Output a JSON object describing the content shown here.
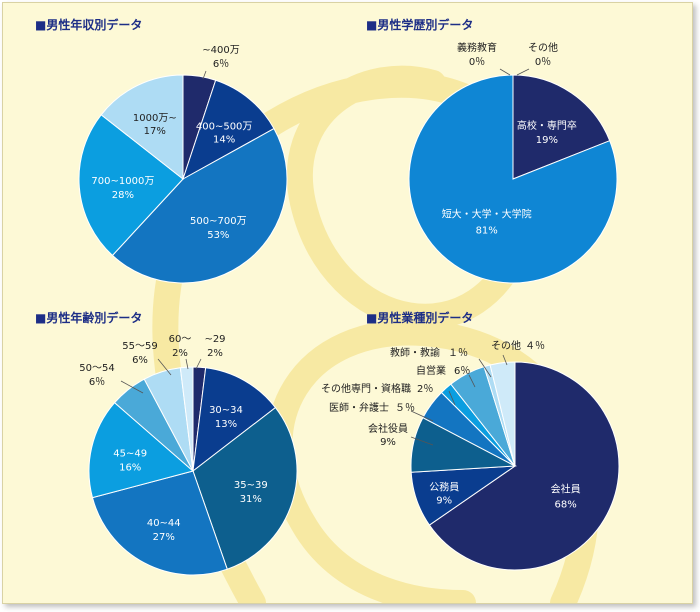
{
  "colors": {
    "background": "#fdf9d6",
    "swirl": "#f7e9a3",
    "title": "#1d2e86",
    "navy": "#1f2a6b",
    "dark_blue": "#0a3d8f",
    "medium_blue": "#1375c1",
    "bright_blue": "#0b9ee0",
    "light_blue": "#aedcf4",
    "very_light_blue": "#cfeaf9",
    "steel_blue": "#4aa9d8",
    "teal_blue": "#0d5f8e"
  },
  "chart_data": [
    {
      "type": "pie",
      "title": "■男性年収別データ",
      "slices": [
        {
          "label": "~400万",
          "value": 6,
          "value_text": "6％",
          "color": "#1f2a6b",
          "label_position": "outside",
          "label_color": "#222222"
        },
        {
          "label": "400~500万",
          "value": 14,
          "value_text": "14%",
          "color": "#0a3d8f",
          "label_position": "inside",
          "label_color": "#ffffff"
        },
        {
          "label": "500~700万",
          "value": 53,
          "value_text": "53%",
          "color": "#1375c1",
          "label_position": "inside",
          "label_color": "#ffffff"
        },
        {
          "label": "700~1000万",
          "value": 28,
          "value_text": "28%",
          "color": "#0b9ee0",
          "label_position": "inside",
          "label_color": "#ffffff"
        },
        {
          "label": "1000万~",
          "value": 17,
          "value_text": "17%",
          "color": "#aedcf4",
          "label_position": "inside",
          "label_color": "#222222"
        }
      ]
    },
    {
      "type": "pie",
      "title": "■男性学歴別データ",
      "slices": [
        {
          "label": "高校・専門卒",
          "value": 19,
          "value_text": "19%",
          "color": "#1f2a6b",
          "label_position": "inside",
          "label_color": "#ffffff"
        },
        {
          "label": "短大・大学・大学院",
          "value": 81,
          "value_text": "81%",
          "color": "#0f86d4",
          "label_position": "inside",
          "label_color": "#ffffff"
        },
        {
          "label": "義務教育",
          "value": 0,
          "value_text": "0％",
          "color": "#6f8fc0",
          "label_position": "outside",
          "label_color": "#222222"
        },
        {
          "label": "その他",
          "value": 0,
          "value_text": "0％",
          "color": "#6f8fc0",
          "label_position": "outside",
          "label_color": "#222222"
        }
      ]
    },
    {
      "type": "pie",
      "title": "■男性年齢別データ",
      "slices": [
        {
          "label": "~29",
          "value": 2,
          "value_text": "2%",
          "color": "#1f2a6b",
          "label_position": "outside",
          "label_color": "#222222"
        },
        {
          "label": "30~34",
          "value": 13,
          "value_text": "13%",
          "color": "#0a3d8f",
          "label_position": "inside",
          "label_color": "#ffffff"
        },
        {
          "label": "35~39",
          "value": 31,
          "value_text": "31%",
          "color": "#0d5f8e",
          "label_position": "inside",
          "label_color": "#ffffff"
        },
        {
          "label": "40~44",
          "value": 27,
          "value_text": "27%",
          "color": "#1375c1",
          "label_position": "inside",
          "label_color": "#ffffff"
        },
        {
          "label": "45~49",
          "value": 16,
          "value_text": "16%",
          "color": "#0b9ee0",
          "label_position": "inside",
          "label_color": "#ffffff"
        },
        {
          "label": "50～54",
          "value": 6,
          "value_text": "6％",
          "color": "#4aa9d8",
          "label_position": "outside",
          "label_color": "#222222"
        },
        {
          "label": "55～59",
          "value": 6,
          "value_text": "6%",
          "color": "#aedcf4",
          "label_position": "outside",
          "label_color": "#222222"
        },
        {
          "label": "60～",
          "value": 2,
          "value_text": "2%",
          "color": "#cfeaf9",
          "label_position": "outside",
          "label_color": "#222222"
        }
      ]
    },
    {
      "type": "pie",
      "title": "■男性業種別データ",
      "slices": [
        {
          "label": "会社員",
          "value": 68,
          "value_text": "68%",
          "color": "#1f2a6b",
          "label_position": "inside",
          "label_color": "#ffffff"
        },
        {
          "label": "公務員",
          "value": 9,
          "value_text": "9%",
          "color": "#0a3d8f",
          "label_position": "inside",
          "label_color": "#ffffff"
        },
        {
          "label": "会社役員",
          "value": 9,
          "value_text": "9%",
          "color": "#0d5f8e",
          "label_position": "outside",
          "label_color": "#222222"
        },
        {
          "label": "医師・弁護士",
          "value": 5,
          "value_text": "５％",
          "color": "#1375c1",
          "label_position": "outside",
          "label_color": "#222222"
        },
        {
          "label": "その他専門・資格職",
          "value": 2,
          "value_text": "2％",
          "color": "#0b9ee0",
          "label_position": "outside",
          "label_color": "#222222"
        },
        {
          "label": "自営業",
          "value": 6,
          "value_text": "6％",
          "color": "#4aa9d8",
          "label_position": "outside",
          "label_color": "#222222"
        },
        {
          "label": "教師・教諭",
          "value": 1,
          "value_text": "１％",
          "color": "#aedcf4",
          "label_position": "outside",
          "label_color": "#222222"
        },
        {
          "label": "その他",
          "value": 4,
          "value_text": "４％",
          "color": "#cfeaf9",
          "label_position": "outside",
          "label_color": "#222222"
        }
      ]
    }
  ]
}
